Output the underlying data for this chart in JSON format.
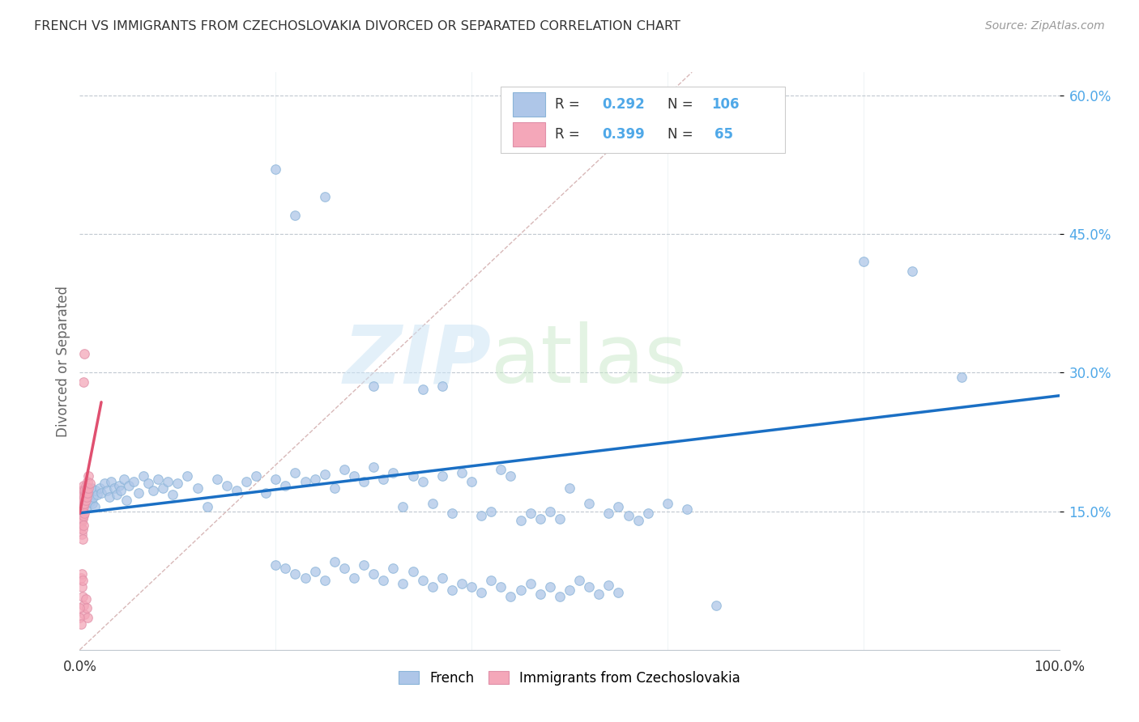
{
  "title": "FRENCH VS IMMIGRANTS FROM CZECHOSLOVAKIA DIVORCED OR SEPARATED CORRELATION CHART",
  "source": "Source: ZipAtlas.com",
  "ylabel": "Divorced or Separated",
  "french_color": "#aec6e8",
  "czech_color": "#f4a7b9",
  "french_line_color": "#1a6fc4",
  "czech_line_color": "#e05070",
  "diagonal_color": "#d8b8b8",
  "french_points": [
    [
      0.001,
      0.155
    ],
    [
      0.002,
      0.16
    ],
    [
      0.003,
      0.15
    ],
    [
      0.004,
      0.165
    ],
    [
      0.005,
      0.158
    ],
    [
      0.006,
      0.162
    ],
    [
      0.007,
      0.155
    ],
    [
      0.008,
      0.17
    ],
    [
      0.009,
      0.168
    ],
    [
      0.01,
      0.16
    ],
    [
      0.012,
      0.175
    ],
    [
      0.013,
      0.158
    ],
    [
      0.014,
      0.165
    ],
    [
      0.015,
      0.155
    ],
    [
      0.016,
      0.172
    ],
    [
      0.018,
      0.168
    ],
    [
      0.02,
      0.175
    ],
    [
      0.022,
      0.17
    ],
    [
      0.025,
      0.18
    ],
    [
      0.028,
      0.172
    ],
    [
      0.03,
      0.165
    ],
    [
      0.032,
      0.182
    ],
    [
      0.035,
      0.175
    ],
    [
      0.038,
      0.168
    ],
    [
      0.04,
      0.178
    ],
    [
      0.042,
      0.172
    ],
    [
      0.045,
      0.185
    ],
    [
      0.048,
      0.162
    ],
    [
      0.05,
      0.178
    ],
    [
      0.055,
      0.182
    ],
    [
      0.06,
      0.17
    ],
    [
      0.065,
      0.188
    ],
    [
      0.07,
      0.18
    ],
    [
      0.075,
      0.172
    ],
    [
      0.08,
      0.185
    ],
    [
      0.085,
      0.175
    ],
    [
      0.09,
      0.182
    ],
    [
      0.095,
      0.168
    ],
    [
      0.1,
      0.18
    ],
    [
      0.11,
      0.188
    ],
    [
      0.12,
      0.175
    ],
    [
      0.13,
      0.155
    ],
    [
      0.14,
      0.185
    ],
    [
      0.15,
      0.178
    ],
    [
      0.16,
      0.172
    ],
    [
      0.17,
      0.182
    ],
    [
      0.18,
      0.188
    ],
    [
      0.19,
      0.17
    ],
    [
      0.2,
      0.185
    ],
    [
      0.21,
      0.178
    ],
    [
      0.22,
      0.192
    ],
    [
      0.23,
      0.182
    ],
    [
      0.24,
      0.185
    ],
    [
      0.25,
      0.19
    ],
    [
      0.26,
      0.175
    ],
    [
      0.27,
      0.195
    ],
    [
      0.28,
      0.188
    ],
    [
      0.29,
      0.182
    ],
    [
      0.3,
      0.198
    ],
    [
      0.31,
      0.185
    ],
    [
      0.32,
      0.192
    ],
    [
      0.33,
      0.155
    ],
    [
      0.34,
      0.188
    ],
    [
      0.35,
      0.182
    ],
    [
      0.36,
      0.158
    ],
    [
      0.37,
      0.188
    ],
    [
      0.38,
      0.148
    ],
    [
      0.39,
      0.192
    ],
    [
      0.4,
      0.182
    ],
    [
      0.41,
      0.145
    ],
    [
      0.42,
      0.15
    ],
    [
      0.43,
      0.195
    ],
    [
      0.44,
      0.188
    ],
    [
      0.45,
      0.14
    ],
    [
      0.46,
      0.148
    ],
    [
      0.47,
      0.142
    ],
    [
      0.48,
      0.15
    ],
    [
      0.49,
      0.142
    ],
    [
      0.3,
      0.285
    ],
    [
      0.35,
      0.282
    ],
    [
      0.37,
      0.285
    ],
    [
      0.5,
      0.175
    ],
    [
      0.52,
      0.158
    ],
    [
      0.54,
      0.148
    ],
    [
      0.55,
      0.155
    ],
    [
      0.56,
      0.145
    ],
    [
      0.57,
      0.14
    ],
    [
      0.58,
      0.148
    ],
    [
      0.6,
      0.158
    ],
    [
      0.62,
      0.152
    ],
    [
      0.65,
      0.048
    ],
    [
      0.2,
      0.52
    ],
    [
      0.22,
      0.47
    ],
    [
      0.25,
      0.49
    ],
    [
      0.8,
      0.42
    ],
    [
      0.85,
      0.41
    ],
    [
      0.9,
      0.295
    ],
    [
      0.2,
      0.092
    ],
    [
      0.21,
      0.088
    ],
    [
      0.22,
      0.082
    ],
    [
      0.23,
      0.078
    ],
    [
      0.24,
      0.085
    ],
    [
      0.25,
      0.075
    ],
    [
      0.26,
      0.095
    ],
    [
      0.27,
      0.088
    ],
    [
      0.28,
      0.078
    ],
    [
      0.29,
      0.092
    ],
    [
      0.3,
      0.082
    ],
    [
      0.31,
      0.075
    ],
    [
      0.32,
      0.088
    ],
    [
      0.33,
      0.072
    ],
    [
      0.34,
      0.085
    ],
    [
      0.35,
      0.075
    ],
    [
      0.36,
      0.068
    ],
    [
      0.37,
      0.078
    ],
    [
      0.38,
      0.065
    ],
    [
      0.39,
      0.072
    ],
    [
      0.4,
      0.068
    ],
    [
      0.41,
      0.062
    ],
    [
      0.42,
      0.075
    ],
    [
      0.43,
      0.068
    ],
    [
      0.44,
      0.058
    ],
    [
      0.45,
      0.065
    ],
    [
      0.46,
      0.072
    ],
    [
      0.47,
      0.06
    ],
    [
      0.48,
      0.068
    ],
    [
      0.49,
      0.058
    ],
    [
      0.5,
      0.065
    ],
    [
      0.51,
      0.075
    ],
    [
      0.52,
      0.068
    ],
    [
      0.53,
      0.06
    ],
    [
      0.54,
      0.07
    ],
    [
      0.55,
      0.062
    ]
  ],
  "czech_points": [
    [
      0.0,
      0.15
    ],
    [
      0.0,
      0.148
    ],
    [
      0.0,
      0.152
    ],
    [
      0.0,
      0.155
    ],
    [
      0.0,
      0.145
    ],
    [
      0.0,
      0.158
    ],
    [
      0.0,
      0.142
    ],
    [
      0.0,
      0.16
    ],
    [
      0.0,
      0.138
    ],
    [
      0.0,
      0.162
    ],
    [
      0.0,
      0.135
    ],
    [
      0.0,
      0.165
    ],
    [
      0.001,
      0.148
    ],
    [
      0.001,
      0.152
    ],
    [
      0.001,
      0.158
    ],
    [
      0.001,
      0.142
    ],
    [
      0.001,
      0.165
    ],
    [
      0.001,
      0.138
    ],
    [
      0.001,
      0.172
    ],
    [
      0.001,
      0.132
    ],
    [
      0.002,
      0.15
    ],
    [
      0.002,
      0.155
    ],
    [
      0.002,
      0.162
    ],
    [
      0.002,
      0.145
    ],
    [
      0.002,
      0.168
    ],
    [
      0.002,
      0.138
    ],
    [
      0.002,
      0.125
    ],
    [
      0.003,
      0.152
    ],
    [
      0.003,
      0.158
    ],
    [
      0.003,
      0.165
    ],
    [
      0.003,
      0.142
    ],
    [
      0.003,
      0.172
    ],
    [
      0.003,
      0.13
    ],
    [
      0.003,
      0.12
    ],
    [
      0.004,
      0.155
    ],
    [
      0.004,
      0.162
    ],
    [
      0.004,
      0.168
    ],
    [
      0.004,
      0.145
    ],
    [
      0.004,
      0.178
    ],
    [
      0.004,
      0.135
    ],
    [
      0.005,
      0.158
    ],
    [
      0.005,
      0.165
    ],
    [
      0.005,
      0.172
    ],
    [
      0.005,
      0.148
    ],
    [
      0.006,
      0.162
    ],
    [
      0.006,
      0.17
    ],
    [
      0.006,
      0.178
    ],
    [
      0.007,
      0.165
    ],
    [
      0.007,
      0.175
    ],
    [
      0.008,
      0.17
    ],
    [
      0.008,
      0.182
    ],
    [
      0.009,
      0.175
    ],
    [
      0.009,
      0.188
    ],
    [
      0.01,
      0.18
    ],
    [
      0.004,
      0.29
    ],
    [
      0.005,
      0.32
    ],
    [
      0.002,
      0.068
    ],
    [
      0.003,
      0.058
    ],
    [
      0.004,
      0.048
    ],
    [
      0.005,
      0.038
    ],
    [
      0.006,
      0.055
    ],
    [
      0.007,
      0.045
    ],
    [
      0.008,
      0.035
    ],
    [
      0.001,
      0.078
    ],
    [
      0.002,
      0.082
    ],
    [
      0.003,
      0.075
    ],
    [
      0.0,
      0.045
    ],
    [
      0.0,
      0.035
    ],
    [
      0.001,
      0.028
    ]
  ],
  "x_min": 0.0,
  "x_max": 1.0,
  "y_min": 0.0,
  "y_max": 0.625,
  "y_ticks": [
    0.15,
    0.3,
    0.45,
    0.6
  ],
  "y_tick_labels": [
    "15.0%",
    "30.0%",
    "45.0%",
    "60.0%"
  ],
  "french_trend_x0": 0.0,
  "french_trend_y0": 0.148,
  "french_trend_x1": 1.0,
  "french_trend_y1": 0.275,
  "czech_trend_x0": 0.0,
  "czech_trend_y0": 0.148,
  "czech_trend_x1": 0.022,
  "czech_trend_y1": 0.268
}
